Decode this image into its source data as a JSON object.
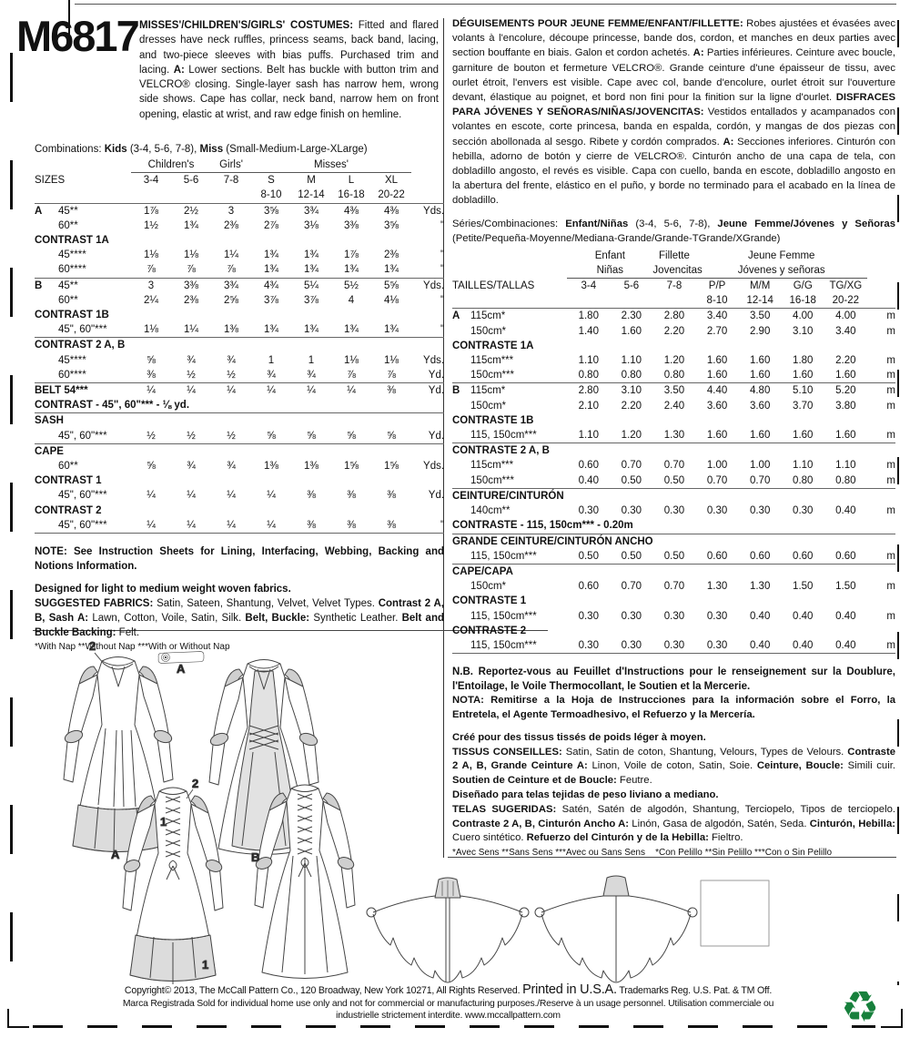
{
  "pattern_number": "M6817",
  "description_en": [
    {
      "b": 1,
      "t": "MISSES'/CHILDREN'S/GIRLS' COSTUMES:"
    },
    {
      "t": " Fitted and flared dresses have neck ruffles, princess seams, back band, lacing, and two-piece sleeves with bias puffs. Purchased trim and lacing. "
    },
    {
      "b": 1,
      "t": "A:"
    },
    {
      "t": " Lower sections. Belt has buckle with button trim and VELCRO® closing. Single-layer sash has narrow hem, wrong side shows. Cape has collar, neck band, narrow hem on front opening, elastic at wrist, and raw edge finish on hemline."
    }
  ],
  "description_fr_es": [
    {
      "b": 1,
      "t": "DÉGUISEMENTS POUR JEUNE FEMME/ENFANT/FILLETTE:"
    },
    {
      "t": " Robes ajustées et évasées avec volants à l'encolure, découpe princesse, bande dos, cordon, et manches en deux parties avec section bouffante en biais. Galon et cordon achetés. "
    },
    {
      "b": 1,
      "t": "A:"
    },
    {
      "t": " Parties inférieures. Ceinture avec boucle, garniture de bouton et fermeture VELCRO®. Grande ceinture d'une épaisseur de tissu, avec ourlet étroit, l'envers est visible. Cape avec col, bande d'encolure, ourlet étroit sur l'ouverture devant, élastique au poignet, et bord non fini pour la finition sur la ligne d'ourlet. "
    },
    {
      "b": 1,
      "t": "DISFRACES PARA JÓVENES Y SEÑORAS/NIÑAS/JOVENCITAS:"
    },
    {
      "t": " Vestidos entallados y acampanados con volantes en escote, corte princesa, banda en espalda, cordón, y mangas de dos piezas con sección abollonada al sesgo. Ribete y cordón comprados. "
    },
    {
      "b": 1,
      "t": "A:"
    },
    {
      "t": " Secciones inferiores. Cinturón con hebilla, adorno de botón y cierre de VELCRO®. Cinturón ancho de una capa de tela, con dobladillo angosto, el revés es visible. Capa con cuello, banda en escote, dobladillo angosto en la abertura del frente, elástico en el puño, y borde no terminado para el acabado en la línea de dobladillo."
    }
  ],
  "left_table": {
    "combinations": [
      {
        "t": "Combinations: "
      },
      {
        "b": 1,
        "t": "Kids"
      },
      {
        "t": " (3-4, 5-6, 7-8), "
      },
      {
        "b": 1,
        "t": "Miss"
      },
      {
        "t": " (Small-Medium-Large-XLarge)"
      }
    ],
    "group_childrens": "Children's",
    "group_girls": "Girls'",
    "group_misses": "Misses'",
    "sizes_label": "SIZES",
    "cols": [
      "3-4",
      "5-6",
      "7-8",
      "S",
      "M",
      "L",
      "XL"
    ],
    "cols2": [
      "8-10",
      "12-14",
      "16-18",
      "20-22"
    ],
    "rows": [
      {
        "l": "A",
        "w": "45**",
        "v": [
          "1⅞",
          "2½",
          "3",
          "3⅝",
          "3¾",
          "4⅜",
          "4⅜"
        ],
        "u": "Yds."
      },
      {
        "l": "",
        "w": "60**",
        "v": [
          "1½",
          "1¾",
          "2⅜",
          "2⅞",
          "3⅛",
          "3⅜",
          "3⅝"
        ],
        "u": "\""
      },
      {
        "section": "CONTRAST 1A"
      },
      {
        "l": "",
        "w": "45****",
        "v": [
          "1⅛",
          "1⅛",
          "1¼",
          "1¾",
          "1¾",
          "1⅞",
          "2⅜"
        ],
        "u": "\""
      },
      {
        "l": "",
        "w": "60****",
        "v": [
          "⅞",
          "⅞",
          "⅞",
          "1¾",
          "1¾",
          "1¾",
          "1¾"
        ],
        "u": "\""
      },
      {
        "l": "B",
        "w": "45**",
        "v": [
          "3",
          "3⅜",
          "3¾",
          "4¾",
          "5¼",
          "5½",
          "5⅝"
        ],
        "u": "Yds.",
        "rule": 1
      },
      {
        "l": "",
        "w": "60**",
        "v": [
          "2¼",
          "2⅜",
          "2⅝",
          "3⅞",
          "3⅞",
          "4",
          "4⅛"
        ],
        "u": "\""
      },
      {
        "section": "CONTRAST 1B"
      },
      {
        "l": "",
        "w": "45\", 60\"***",
        "v": [
          "1⅛",
          "1¼",
          "1⅜",
          "1¾",
          "1¾",
          "1¾",
          "1¾"
        ],
        "u": "\""
      },
      {
        "section": "CONTRAST 2 A, B",
        "rule": 1
      },
      {
        "l": "",
        "w": "45****",
        "v": [
          "⅝",
          "¾",
          "¾",
          "1",
          "1",
          "1⅛",
          "1⅛"
        ],
        "u": "Yds."
      },
      {
        "l": "",
        "w": "60****",
        "v": [
          "⅜",
          "½",
          "½",
          "¾",
          "¾",
          "⅞",
          "⅞"
        ],
        "u": "Yd."
      },
      {
        "lw": "BELT 54***",
        "v": [
          "¼",
          "¼",
          "¼",
          "¼",
          "¼",
          "¼",
          "⅜"
        ],
        "u": "Yd.",
        "rule": 1
      },
      {
        "note": "CONTRAST - 45\", 60\"*** - ⅛ yd."
      },
      {
        "section": "SASH",
        "rule": 1
      },
      {
        "l": "",
        "w": "45\", 60\"***",
        "v": [
          "½",
          "½",
          "½",
          "⅝",
          "⅝",
          "⅝",
          "⅝"
        ],
        "u": "Yd."
      },
      {
        "section": "CAPE",
        "rule": 1
      },
      {
        "l": "",
        "w": "60**",
        "v": [
          "⅝",
          "¾",
          "¾",
          "1⅜",
          "1⅜",
          "1⅝",
          "1⅝"
        ],
        "u": "Yds."
      },
      {
        "section": "CONTRAST 1"
      },
      {
        "l": "",
        "w": "45\", 60\"***",
        "v": [
          "¼",
          "¼",
          "¼",
          "¼",
          "⅜",
          "⅜",
          "⅜"
        ],
        "u": "Yd."
      },
      {
        "section": "CONTRAST 2"
      },
      {
        "l": "",
        "w": "45\", 60\"***",
        "v": [
          "¼",
          "¼",
          "¼",
          "¼",
          "⅜",
          "⅜",
          "⅜"
        ],
        "u": "\""
      }
    ]
  },
  "right_table": {
    "series": [
      {
        "t": "Séries/Combinaciones: "
      },
      {
        "b": 1,
        "t": "Enfant/Niñas"
      },
      {
        "t": " (3-4, 5-6, 7-8), "
      },
      {
        "b": 1,
        "t": "Jeune Femme/Jóvenes y Señoras"
      },
      {
        "t": " (Petite/Pequeña-Moyenne/Mediana-Grande/Grande-TGrande/XGrande)"
      }
    ],
    "group1a": "Enfant",
    "group1b": "Niñas",
    "group2a": "Fillette",
    "group2b": "Jovencitas",
    "group3a": "Jeune Femme",
    "group3b": "Jóvenes y señoras",
    "sizes_label": "TAILLES/TALLAS",
    "cols": [
      "3-4",
      "5-6",
      "7-8",
      "P/P",
      "M/M",
      "G/G",
      "TG/XG"
    ],
    "cols2": [
      "8-10",
      "12-14",
      "16-18",
      "20-22"
    ],
    "rows": [
      {
        "l": "A",
        "w": "115cm*",
        "v": [
          "1.80",
          "2.30",
          "2.80",
          "3.40",
          "3.50",
          "4.00",
          "4.00"
        ],
        "u": "m"
      },
      {
        "l": "",
        "w": "150cm*",
        "v": [
          "1.40",
          "1.60",
          "2.20",
          "2.70",
          "2.90",
          "3.10",
          "3.40"
        ],
        "u": "m"
      },
      {
        "section": "CONTRASTE 1A"
      },
      {
        "l": "",
        "w": "115cm***",
        "v": [
          "1.10",
          "1.10",
          "1.20",
          "1.60",
          "1.60",
          "1.80",
          "2.20"
        ],
        "u": "m"
      },
      {
        "l": "",
        "w": "150cm***",
        "v": [
          "0.80",
          "0.80",
          "0.80",
          "1.60",
          "1.60",
          "1.60",
          "1.60"
        ],
        "u": "m"
      },
      {
        "l": "B",
        "w": "115cm*",
        "v": [
          "2.80",
          "3.10",
          "3.50",
          "4.40",
          "4.80",
          "5.10",
          "5.20"
        ],
        "u": "m",
        "rule": 1
      },
      {
        "l": "",
        "w": "150cm*",
        "v": [
          "2.10",
          "2.20",
          "2.40",
          "3.60",
          "3.60",
          "3.70",
          "3.80"
        ],
        "u": "m"
      },
      {
        "section": "CONTRASTE 1B"
      },
      {
        "l": "",
        "w": "115, 150cm***",
        "v": [
          "1.10",
          "1.20",
          "1.30",
          "1.60",
          "1.60",
          "1.60",
          "1.60"
        ],
        "u": "m"
      },
      {
        "section": "CONTRASTE 2 A, B",
        "rule": 1
      },
      {
        "l": "",
        "w": "115cm***",
        "v": [
          "0.60",
          "0.70",
          "0.70",
          "1.00",
          "1.00",
          "1.10",
          "1.10"
        ],
        "u": "m"
      },
      {
        "l": "",
        "w": "150cm***",
        "v": [
          "0.40",
          "0.50",
          "0.50",
          "0.70",
          "0.70",
          "0.80",
          "0.80"
        ],
        "u": "m"
      },
      {
        "section": "CEINTURE/CINTURÓN",
        "rule": 1
      },
      {
        "l": "",
        "w": "140cm**",
        "v": [
          "0.30",
          "0.30",
          "0.30",
          "0.30",
          "0.30",
          "0.30",
          "0.40"
        ],
        "u": "m"
      },
      {
        "note": "CONTRASTE - 115, 150cm*** - 0.20m"
      },
      {
        "section": "GRANDE CEINTURE/CINTURÓN ANCHO",
        "rule": 1
      },
      {
        "l": "",
        "w": "115, 150cm***",
        "v": [
          "0.50",
          "0.50",
          "0.50",
          "0.60",
          "0.60",
          "0.60",
          "0.60"
        ],
        "u": "m"
      },
      {
        "section": "CAPE/CAPA",
        "rule": 1
      },
      {
        "l": "",
        "w": "150cm*",
        "v": [
          "0.60",
          "0.70",
          "0.70",
          "1.30",
          "1.30",
          "1.50",
          "1.50"
        ],
        "u": "m"
      },
      {
        "section": "CONTRASTE 1"
      },
      {
        "l": "",
        "w": "115, 150cm***",
        "v": [
          "0.30",
          "0.30",
          "0.30",
          "0.30",
          "0.40",
          "0.40",
          "0.40"
        ],
        "u": "m"
      },
      {
        "section": "CONTRASTE 2"
      },
      {
        "l": "",
        "w": "115, 150cm***",
        "v": [
          "0.30",
          "0.30",
          "0.30",
          "0.30",
          "0.40",
          "0.40",
          "0.40"
        ],
        "u": "m"
      }
    ]
  },
  "notes_en": {
    "note": [
      {
        "b": 1,
        "t": "NOTE: See Instruction Sheets for Lining, Interfacing, Webbing, Backing and Notions Information."
      }
    ],
    "designed": [
      {
        "b": 1,
        "t": "Designed for light to medium weight woven fabrics."
      }
    ],
    "suggested": [
      {
        "b": 1,
        "t": "SUGGESTED FABRICS:"
      },
      {
        "t": " Satin, Sateen, Shantung, Velvet, Velvet Types. "
      },
      {
        "b": 1,
        "t": "Contrast 2 A, B, Sash A:"
      },
      {
        "t": " Lawn, Cotton, Voile, Satin, Silk. "
      },
      {
        "b": 1,
        "t": "Belt, Buckle:"
      },
      {
        "t": " Synthetic Leather. "
      },
      {
        "b": 1,
        "t": "Belt and Buckle Backing:"
      },
      {
        "t": " Felt."
      }
    ],
    "nap": "*With Nap **Without Nap ***With or Without Nap"
  },
  "notes_fr_es": {
    "nb": [
      {
        "b": 1,
        "t": "N.B. Reportez-vous au Feuillet d'Instructions pour le renseignement sur la Doublure, l'Entoilage, le Voile Thermocollant, le Soutien et la Mercerie."
      }
    ],
    "nota": [
      {
        "b": 1,
        "t": "NOTA: Remitirse a la Hoja de Instrucciones para la información sobre el Forro, la Entretela, el Agente Termoadhesivo, el Refuerzo y la Mercería."
      }
    ],
    "cree": [
      {
        "b": 1,
        "t": "Créé pour des tissus tissés de poids léger à moyen."
      }
    ],
    "tissus": [
      {
        "b": 1,
        "t": "TISSUS CONSEILLES:"
      },
      {
        "t": " Satin, Satin de coton, Shantung, Velours, Types de Velours. "
      },
      {
        "b": 1,
        "t": "Contraste 2 A, B, Grande Ceinture A:"
      },
      {
        "t": " Linon, Voile de coton, Satin, Soie. "
      },
      {
        "b": 1,
        "t": "Ceinture, Boucle:"
      },
      {
        "t": " Simili cuir. "
      },
      {
        "b": 1,
        "t": "Soutien de Ceinture et de Boucle:"
      },
      {
        "t": " Feutre."
      }
    ],
    "disenado": [
      {
        "b": 1,
        "t": "Diseñado para telas tejidas de peso liviano a mediano."
      }
    ],
    "telas": [
      {
        "b": 1,
        "t": "TELAS SUGERIDAS:"
      },
      {
        "t": " Satén, Satén de algodón, Shantung, Terciopelo, Tipos de terciopelo. "
      },
      {
        "b": 1,
        "t": "Contraste 2 A, B, Cinturón Ancho A:"
      },
      {
        "t": " Linón, Gasa de algodón, Satén, Seda. "
      },
      {
        "b": 1,
        "t": "Cinturón, Hebilla:"
      },
      {
        "t": " Cuero sintético. "
      },
      {
        "b": 1,
        "t": "Refuerzo del Cinturón y de la Hebilla:"
      },
      {
        "t": " Fieltro."
      }
    ],
    "nap": "*Avec Sens **Sans Sens ***Avec ou Sans Sens    *Con Pelillo **Sin Pelillo ***Con o Sin Pelillo"
  },
  "figure_labels": {
    "belt": "A",
    "dress_a": "A",
    "dress_b": "B",
    "num1": "1",
    "num2": "2"
  },
  "footer": {
    "line1_left": "Copyright© 2013,  The McCall Pattern Co., 120 Broadway, New York 10271, All Rights Reserved. ",
    "line1_mid": "Printed in U.S.A.",
    "line1_right": " Trademarks Reg. U.S. Pat. & TM Off.",
    "line2": "Marca Registrada Sold for individual home use only and not for commercial or manufacturing purposes./Reserve à un usage personnel. Utilisation commerciale ou",
    "line3": "industrielle strictement interdite. www.mccallpattern.com",
    "recycle_icon": "♻"
  },
  "colors": {
    "shade": "#dcdcdc",
    "recycle_green": "#17803c"
  }
}
